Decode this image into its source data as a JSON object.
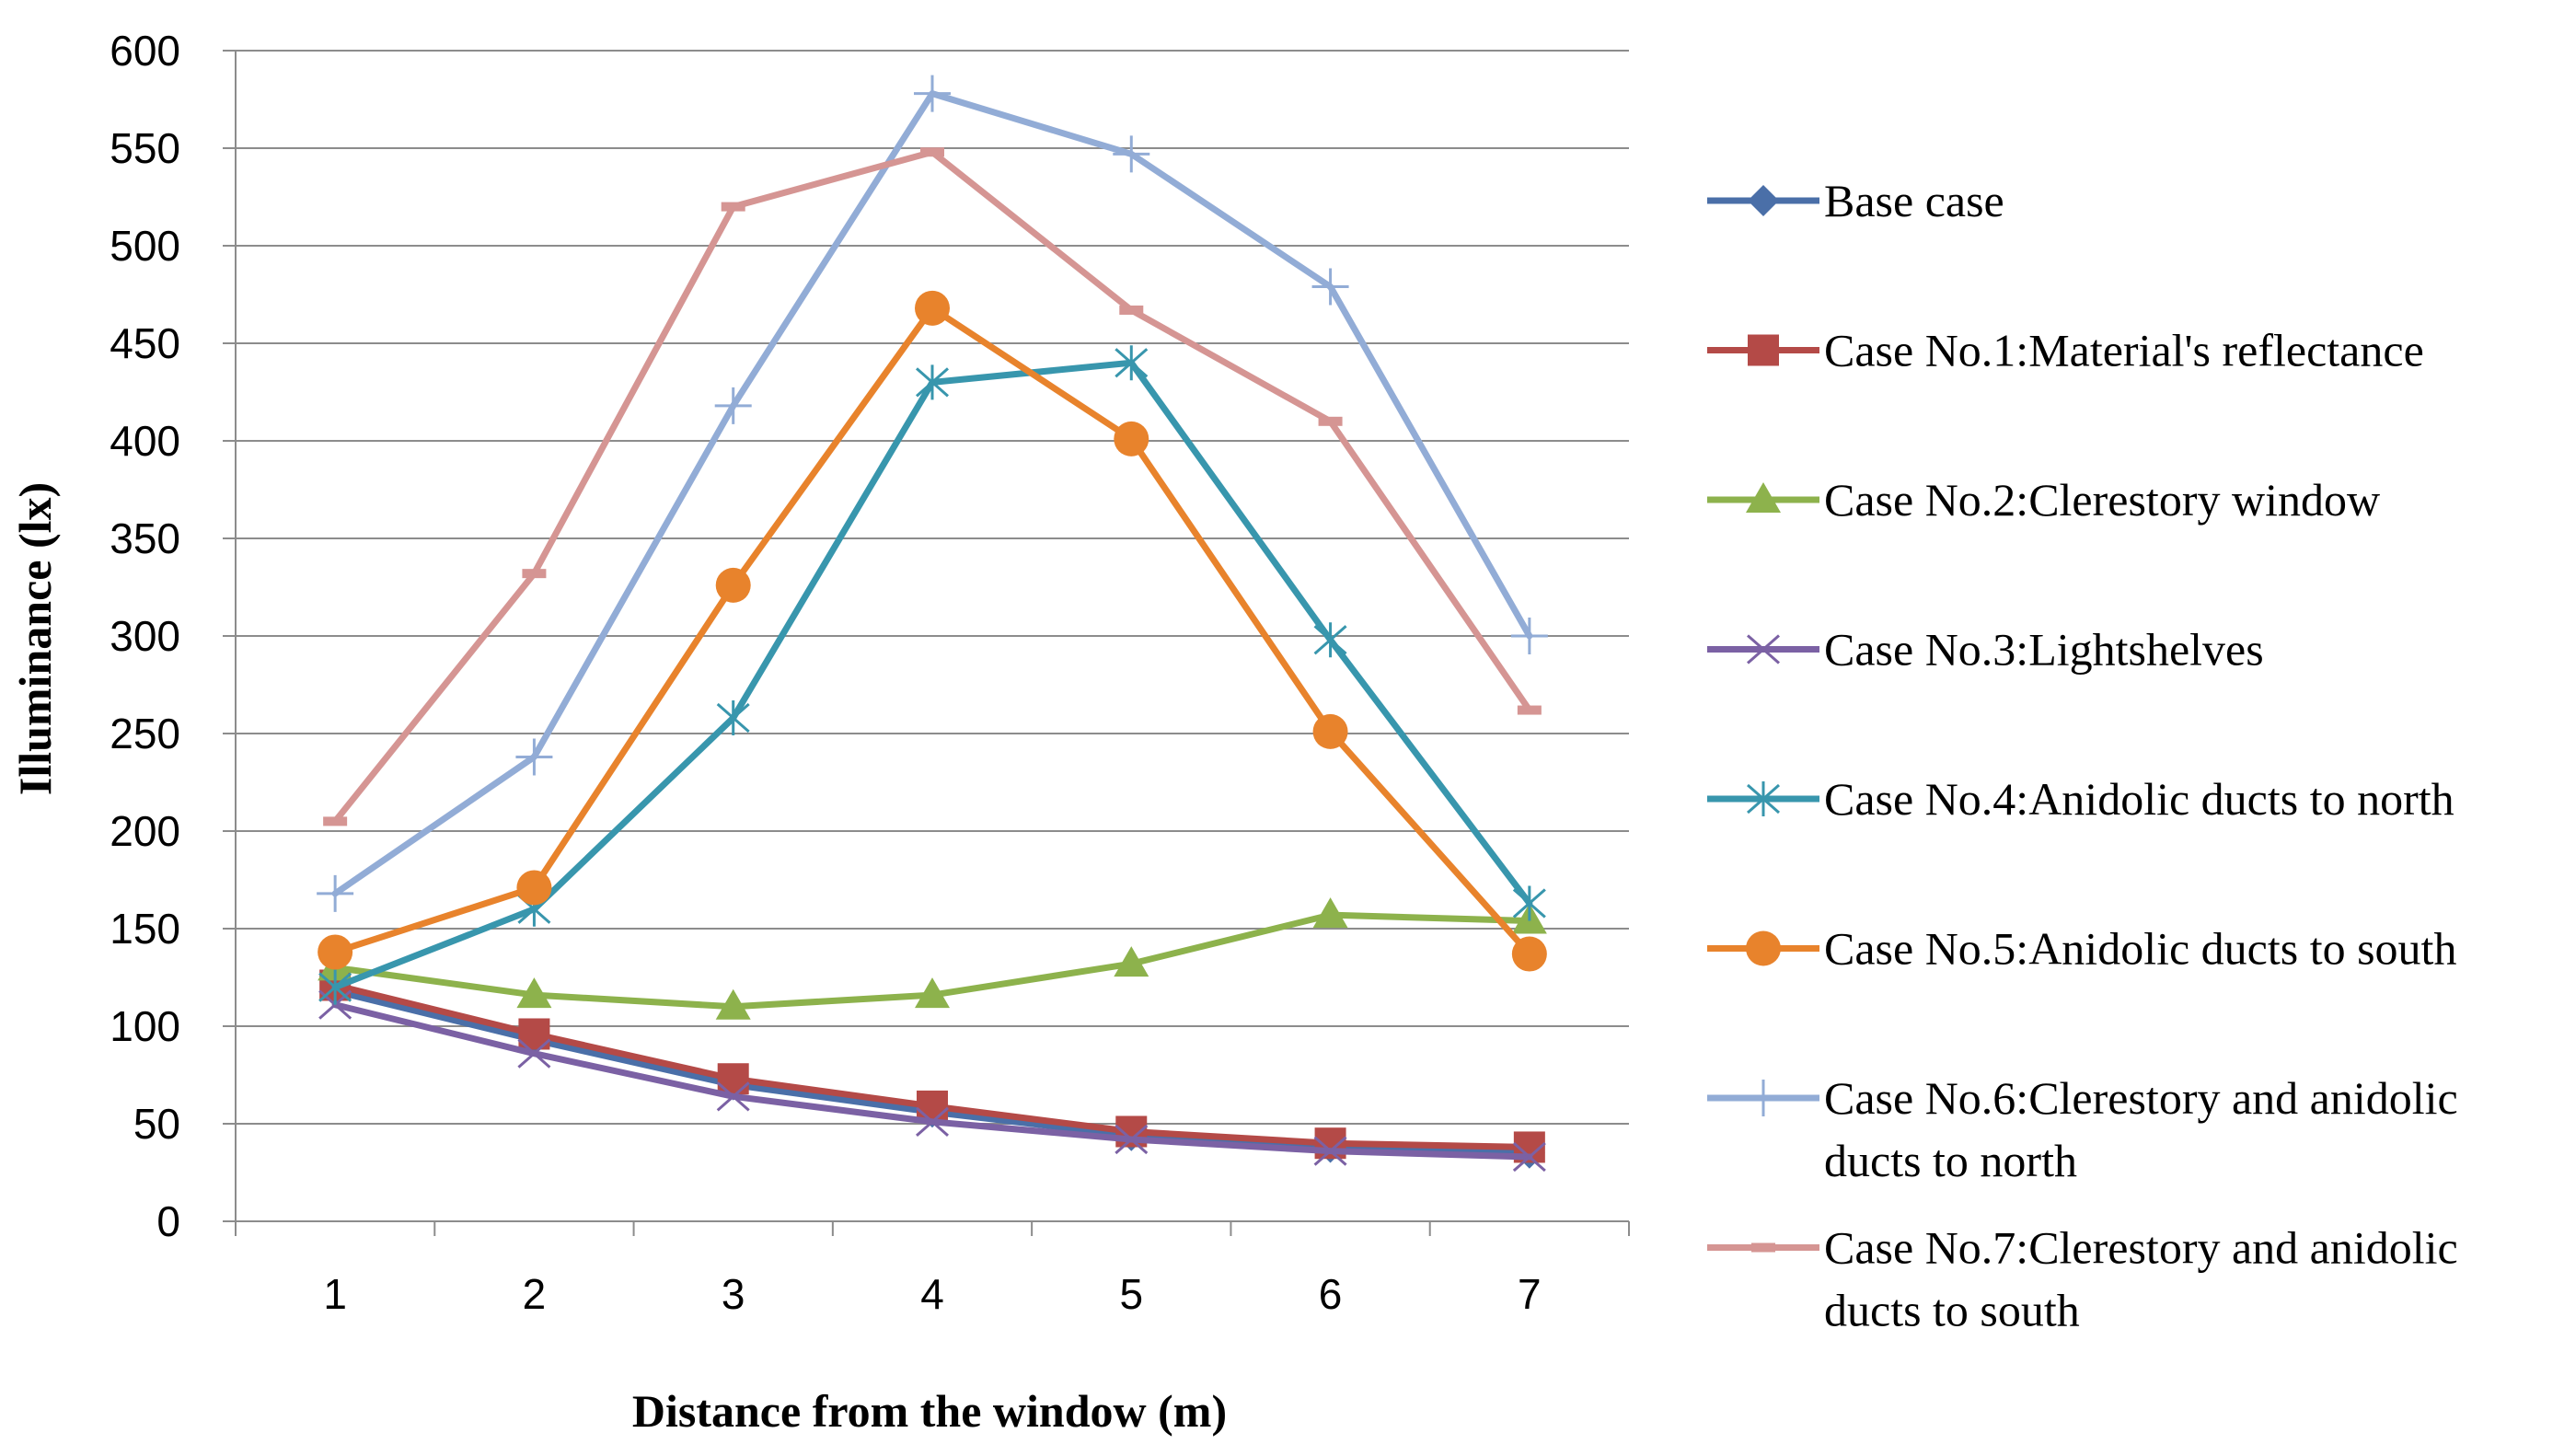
{
  "chart_data": {
    "type": "line",
    "title": "",
    "xlabel": "Distance from the window (m)",
    "ylabel": "Illuminance (lx)",
    "categories": [
      "1",
      "2",
      "3",
      "4",
      "5",
      "6",
      "7"
    ],
    "ylim": [
      0,
      600
    ],
    "yticks": [
      0,
      50,
      100,
      150,
      200,
      250,
      300,
      350,
      400,
      450,
      500,
      550,
      600
    ],
    "grid": true,
    "legend_position": "right",
    "series": [
      {
        "name": "Base case",
        "legend_lines": [
          "Base case"
        ],
        "color": "#4a6fa8",
        "marker": "diamond",
        "values": [
          118,
          93,
          70,
          56,
          44,
          38,
          35
        ]
      },
      {
        "name": "Case No.1:Material's reflectance",
        "legend_lines": [
          "Case No.1:Material's reflectance"
        ],
        "color": "#b44a47",
        "marker": "square",
        "values": [
          121,
          96,
          73,
          59,
          46,
          40,
          38
        ]
      },
      {
        "name": "Case No.2:Clerestory window",
        "legend_lines": [
          "Case No.2:Clerestory window"
        ],
        "color": "#8db24c",
        "marker": "triangle",
        "values": [
          130,
          116,
          110,
          116,
          132,
          157,
          154
        ]
      },
      {
        "name": "Case No.3:Lightshelves",
        "legend_lines": [
          "Case No.3:Lightshelves"
        ],
        "color": "#7b61a4",
        "marker": "x",
        "values": [
          111,
          86,
          64,
          51,
          42,
          36,
          33
        ]
      },
      {
        "name": "Case No.4:Anidolic ducts to north",
        "legend_lines": [
          "Case No.4:Anidolic ducts to north"
        ],
        "color": "#3896ad",
        "marker": "star",
        "values": [
          120,
          160,
          258,
          430,
          440,
          298,
          163
        ]
      },
      {
        "name": "Case No.5:Anidolic ducts to south",
        "legend_lines": [
          "Case No.5:Anidolic ducts to south"
        ],
        "color": "#e8832c",
        "marker": "circle",
        "values": [
          138,
          171,
          326,
          468,
          401,
          251,
          137
        ]
      },
      {
        "name": "Case No.6:Clerestory and anidolic ducts to north",
        "legend_lines": [
          "Case No.6:Clerestory and anidolic",
          "ducts to north"
        ],
        "color": "#92acd6",
        "marker": "plus",
        "values": [
          168,
          238,
          418,
          578,
          547,
          479,
          300
        ]
      },
      {
        "name": "Case No.7:Clerestory and anidolic ducts to south",
        "legend_lines": [
          "Case No.7:Clerestory and anidolic",
          "ducts to south"
        ],
        "color": "#d59593",
        "marker": "dash",
        "values": [
          205,
          332,
          520,
          548,
          467,
          410,
          262
        ]
      }
    ]
  }
}
